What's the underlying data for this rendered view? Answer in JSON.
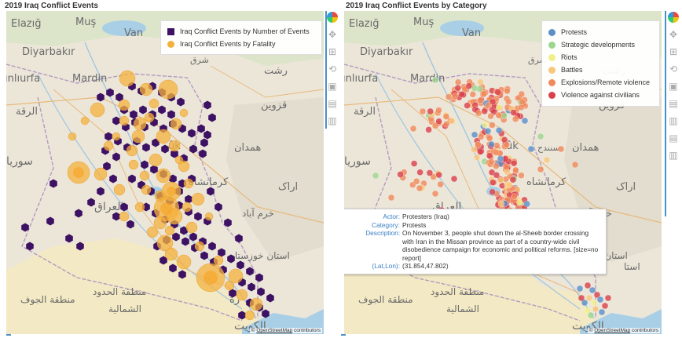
{
  "left_panel": {
    "title": "2019 Iraq Conflict Events",
    "legend": [
      {
        "label": "Iraq Conflict Events by Number of Events",
        "color": "#3d1163",
        "shape": "square"
      },
      {
        "label": "Iraq Conflict Events by Fatality",
        "color": "#f5b13c",
        "shape": "circle"
      }
    ],
    "attribution": {
      "prefix": "© ",
      "link": "OpenStreetMap",
      "suffix": " contributors"
    }
  },
  "right_panel": {
    "title": "2019 Iraq Conflict Events by Category",
    "legend": [
      {
        "label": "Protests",
        "color": "#5b8fc9"
      },
      {
        "label": "Strategic developments",
        "color": "#9ed68f"
      },
      {
        "label": "Riots",
        "color": "#f2ef8a"
      },
      {
        "label": "Battles",
        "color": "#f7c77a"
      },
      {
        "label": "Explosions/Remote violence",
        "color": "#f08a5a"
      },
      {
        "label": "Violence against civilians",
        "color": "#d9404a"
      }
    ],
    "tooltip": {
      "actor_key": "Actor:",
      "actor": "Protesters (Iraq)",
      "category_key": "Category:",
      "category": "Protests",
      "description_key": "Description:",
      "description": "On November 3, people shut down the al-Sheeb border crossing with Iran in the Missan province as part of a country-wide civil disobedience campaign for economic and political reforms. [size=no report]",
      "latlon_key": "(Lat,Lon):",
      "latlon": "(31.854,47.802)"
    },
    "attribution": {
      "prefix": "© ",
      "link": "OpenStreetMap",
      "suffix": " contributors"
    }
  },
  "toolbar_icons": [
    "plotly-logo-icon",
    "pan-icon",
    "box-select-icon",
    "reset-view-icon",
    "save-icon",
    "hover-closest-icon",
    "hover-compare-icon"
  ],
  "map_labels": {
    "elazig": "Elazığ",
    "mus": "Muş",
    "van": "Van",
    "diyarbakir": "Diyarbakır",
    "sanliurfa": "ınlıurfa",
    "mardin": "Mardin",
    "raqqa": "الرقة",
    "sharq": "شرق",
    "rasht": "رشت",
    "qazvin": "قزوين",
    "hamadan": "همدان",
    "kermanshah": "كرمانشاه",
    "arak": "اراک",
    "khorramabad": "خرم آباد",
    "iraq": "العراق",
    "souria": "سوريا",
    "khuzestan": "استان خوزستان",
    "ostan_pre": "استا",
    "jawf": "منطقة الجوف",
    "northern_borders_1": "منطقة الحدود",
    "northern_borders_2": "الشمالية",
    "kuwait": "الكويت",
    "basra": "رة",
    "kuk": "ûk",
    "sanandaj": "سنندج"
  },
  "colors": {
    "water": "#a8cfe6",
    "land": "#ece6d9",
    "desert": "#f3e9c4",
    "green": "#d6e3c3",
    "border": "#b39bbf",
    "hex": "#3d1163",
    "fatality": "#f5b13c",
    "accent": "#4a90c8"
  }
}
